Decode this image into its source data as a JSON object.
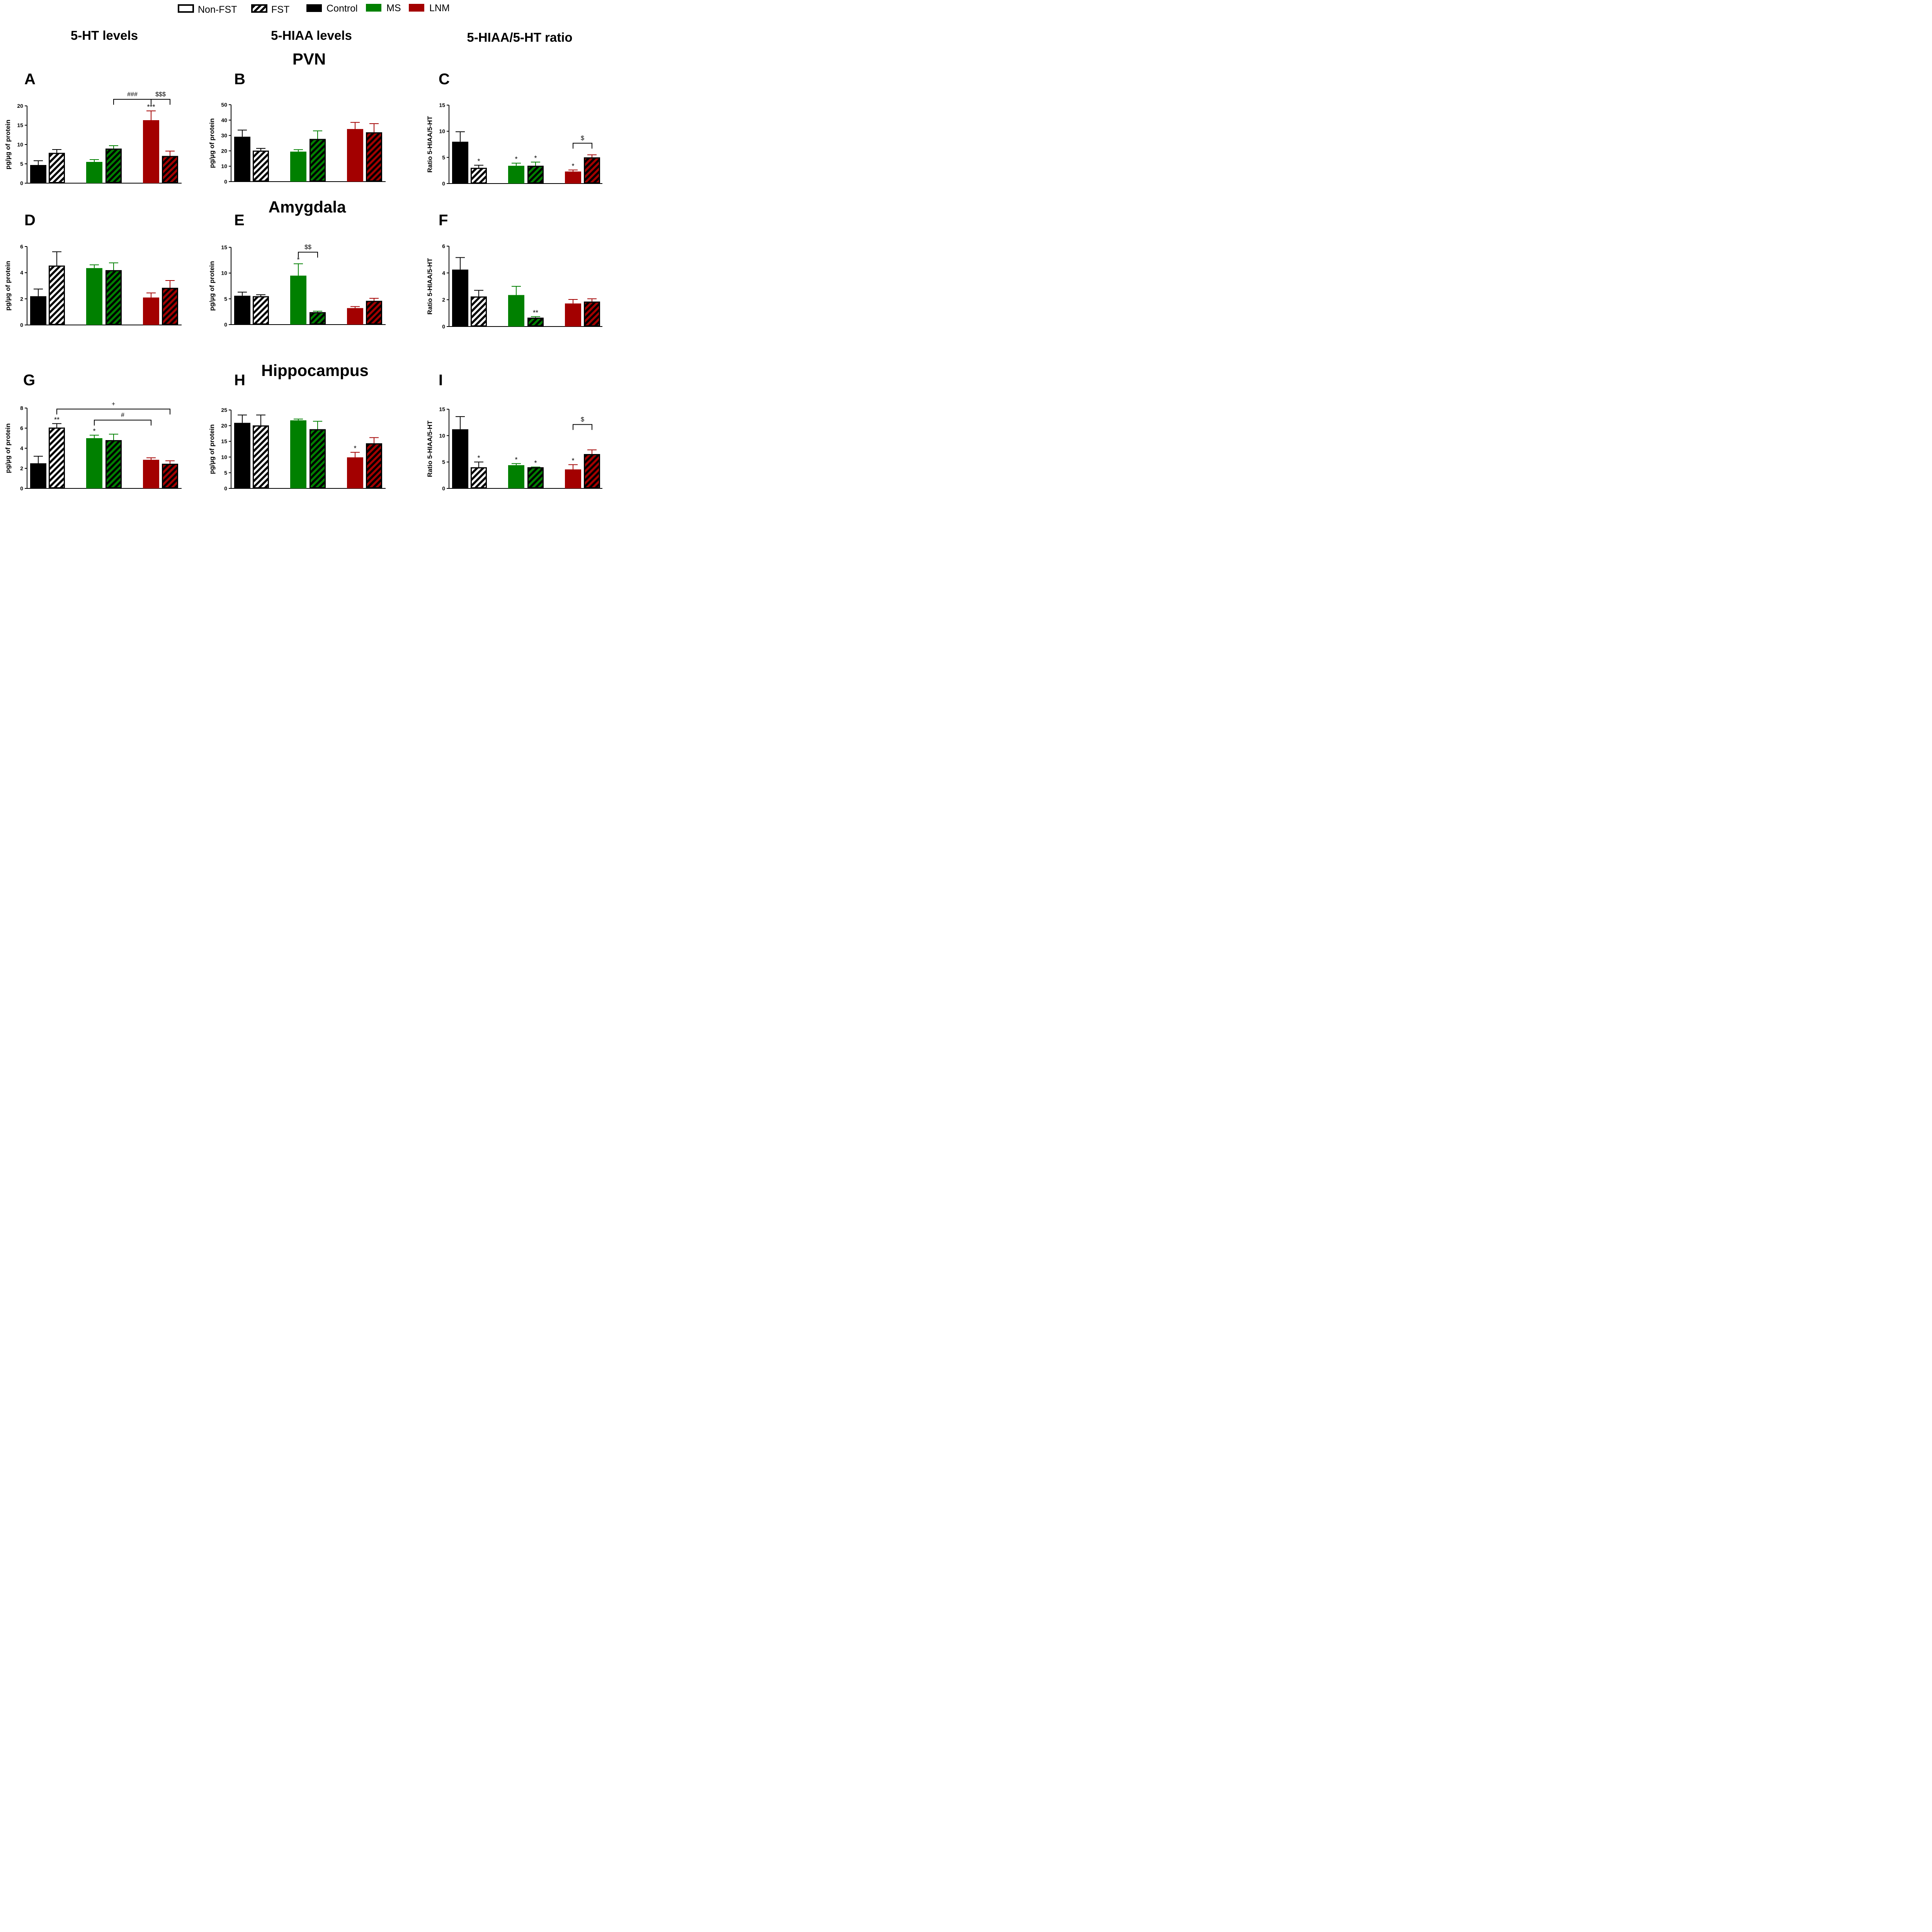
{
  "legend": {
    "items": [
      {
        "label": "Non-FST",
        "fill": "open"
      },
      {
        "label": "FST",
        "fill": "hatched"
      },
      {
        "label": "Control",
        "color": "#000000"
      },
      {
        "label": "MS",
        "color": "#008000"
      },
      {
        "label": "LNM",
        "color": "#a30000"
      }
    ]
  },
  "column_titles": [
    "5-HT levels",
    "5-HIAA levels",
    "5-HIAA/5-HT ratio"
  ],
  "region_titles": [
    "PVN",
    "Amygdala",
    "Hippocampus"
  ],
  "colors": {
    "Control": "#000000",
    "MS": "#008000",
    "LNM": "#a30000"
  },
  "chart_data": [
    {
      "panel": "A",
      "type": "bar",
      "groups": [
        "Control",
        "MS",
        "LNM"
      ],
      "conditions": [
        "Non-FST",
        "FST"
      ],
      "ylabel": "pg/µg of protein",
      "ylim": [
        0,
        20
      ],
      "yticks": [
        "0",
        "5",
        "10",
        "15",
        "20"
      ],
      "values": [
        [
          4.7,
          7.7
        ],
        [
          5.5,
          8.8
        ],
        [
          16.3,
          6.9
        ]
      ],
      "errors": [
        [
          1.1,
          1.0
        ],
        [
          0.6,
          0.9
        ],
        [
          2.4,
          1.4
        ]
      ],
      "stars": [
        [
          "",
          ""
        ],
        [
          "",
          ""
        ],
        [
          "***",
          ""
        ]
      ],
      "brackets": [
        {
          "from": [
            1,
            1
          ],
          "to": [
            2,
            0
          ],
          "label": "###"
        },
        {
          "from": [
            2,
            0
          ],
          "to": [
            2,
            1
          ],
          "label": "$$$"
        }
      ]
    },
    {
      "panel": "B",
      "type": "bar",
      "groups": [
        "Control",
        "MS",
        "LNM"
      ],
      "conditions": [
        "Non-FST",
        "FST"
      ],
      "ylabel": "pg/µg of protein",
      "ylim": [
        0,
        50
      ],
      "yticks": [
        "0",
        "10",
        "20",
        "30",
        "40",
        "50"
      ],
      "values": [
        [
          29.2,
          19.8
        ],
        [
          19.5,
          27.4
        ],
        [
          34.2,
          31.7
        ]
      ],
      "errors": [
        [
          4.3,
          1.8
        ],
        [
          1.3,
          5.6
        ],
        [
          4.3,
          6.0
        ]
      ],
      "stars": [
        [
          "",
          ""
        ],
        [
          "",
          ""
        ],
        [
          "",
          ""
        ]
      ],
      "brackets": []
    },
    {
      "panel": "C",
      "type": "bar",
      "groups": [
        "Control",
        "MS",
        "LNM"
      ],
      "conditions": [
        "Non-FST",
        "FST"
      ],
      "ylabel": "Ratio 5-HIAA/5-HT",
      "ylim": [
        0,
        15
      ],
      "yticks": [
        "0",
        "5",
        "10",
        "15"
      ],
      "values": [
        [
          8.0,
          2.9
        ],
        [
          3.4,
          3.3
        ],
        [
          2.3,
          4.9
        ]
      ],
      "errors": [
        [
          1.9,
          0.6
        ],
        [
          0.5,
          0.8
        ],
        [
          0.3,
          0.6
        ]
      ],
      "stars": [
        [
          "",
          "*"
        ],
        [
          "*",
          "*"
        ],
        [
          "*",
          ""
        ]
      ],
      "brackets": [
        {
          "from": [
            2,
            0
          ],
          "to": [
            2,
            1
          ],
          "label": "$"
        }
      ]
    },
    {
      "panel": "D",
      "type": "bar",
      "groups": [
        "Control",
        "MS",
        "LNM"
      ],
      "conditions": [
        "Non-FST",
        "FST"
      ],
      "ylabel": "pg/µg of protein",
      "ylim": [
        0,
        6
      ],
      "yticks": [
        "0",
        "2",
        "4",
        "6"
      ],
      "values": [
        [
          2.2,
          4.5
        ],
        [
          4.35,
          4.15
        ],
        [
          2.1,
          2.8
        ]
      ],
      "errors": [
        [
          0.55,
          1.1
        ],
        [
          0.25,
          0.6
        ],
        [
          0.35,
          0.6
        ]
      ],
      "stars": [
        [
          "",
          ""
        ],
        [
          "",
          ""
        ],
        [
          "",
          ""
        ]
      ],
      "brackets": []
    },
    {
      "panel": "E",
      "type": "bar",
      "groups": [
        "Control",
        "MS",
        "LNM"
      ],
      "conditions": [
        "Non-FST",
        "FST"
      ],
      "ylabel": "pg/µg of protein",
      "ylim": [
        0,
        15
      ],
      "yticks": [
        "0",
        "5",
        "10",
        "15"
      ],
      "values": [
        [
          5.6,
          5.4
        ],
        [
          9.5,
          2.3
        ],
        [
          3.2,
          4.5
        ]
      ],
      "errors": [
        [
          0.7,
          0.4
        ],
        [
          2.3,
          0.3
        ],
        [
          0.3,
          0.6
        ]
      ],
      "stars": [
        [
          "",
          ""
        ],
        [
          "*",
          ""
        ],
        [
          "",
          ""
        ]
      ],
      "brackets": [
        {
          "from": [
            1,
            0
          ],
          "to": [
            1,
            1
          ],
          "label": "$$"
        }
      ]
    },
    {
      "panel": "F",
      "type": "bar",
      "groups": [
        "Control",
        "MS",
        "LNM"
      ],
      "conditions": [
        "Non-FST",
        "FST"
      ],
      "ylabel": "Ratio 5-HIAA/5-HT",
      "ylim": [
        0,
        6
      ],
      "yticks": [
        "0",
        "2",
        "4",
        "6"
      ],
      "values": [
        [
          4.25,
          2.2
        ],
        [
          2.35,
          0.62
        ],
        [
          1.72,
          1.82
        ]
      ],
      "errors": [
        [
          0.9,
          0.5
        ],
        [
          0.65,
          0.12
        ],
        [
          0.3,
          0.25
        ]
      ],
      "stars": [
        [
          "",
          ""
        ],
        [
          "",
          "**"
        ],
        [
          "",
          ""
        ]
      ],
      "brackets": []
    },
    {
      "panel": "G",
      "type": "bar",
      "groups": [
        "Control",
        "MS",
        "LNM"
      ],
      "conditions": [
        "Non-FST",
        "FST"
      ],
      "ylabel": "pg/µg of protein",
      "ylim": [
        0,
        8
      ],
      "yticks": [
        "0",
        "2",
        "4",
        "6",
        "8"
      ],
      "values": [
        [
          2.5,
          6.0
        ],
        [
          5.0,
          4.75
        ],
        [
          2.85,
          2.4
        ]
      ],
      "errors": [
        [
          0.7,
          0.45
        ],
        [
          0.3,
          0.65
        ],
        [
          0.2,
          0.35
        ]
      ],
      "stars": [
        [
          "",
          "**"
        ],
        [
          "*",
          ""
        ],
        [
          "",
          ""
        ]
      ],
      "brackets": [
        {
          "from": [
            0,
            1
          ],
          "to": [
            2,
            1
          ],
          "label": "+",
          "level": 7.9
        },
        {
          "from": [
            1,
            0
          ],
          "to": [
            2,
            0
          ],
          "label": "#",
          "level": 6.8
        }
      ]
    },
    {
      "panel": "H",
      "type": "bar",
      "groups": [
        "Control",
        "MS",
        "LNM"
      ],
      "conditions": [
        "Non-FST",
        "FST"
      ],
      "ylabel": "pg/µg of protein",
      "ylim": [
        0,
        25
      ],
      "yticks": [
        "0",
        "5",
        "10",
        "15",
        "20",
        "25"
      ],
      "values": [
        [
          20.9,
          19.9
        ],
        [
          21.7,
          18.7
        ],
        [
          9.9,
          14.2
        ]
      ],
      "errors": [
        [
          2.5,
          3.5
        ],
        [
          0.4,
          2.7
        ],
        [
          1.6,
          2.0
        ]
      ],
      "stars": [
        [
          "",
          ""
        ],
        [
          "",
          ""
        ],
        [
          "*",
          ""
        ]
      ],
      "brackets": []
    },
    {
      "panel": "I",
      "type": "bar",
      "groups": [
        "Control",
        "MS",
        "LNM"
      ],
      "conditions": [
        "Non-FST",
        "FST"
      ],
      "ylabel": "Ratio 5-HIAA/5-HT",
      "ylim": [
        0,
        15
      ],
      "yticks": [
        "0",
        "5",
        "10",
        "15"
      ],
      "values": [
        [
          11.2,
          3.9
        ],
        [
          4.4,
          3.9
        ],
        [
          3.6,
          6.4
        ]
      ],
      "errors": [
        [
          2.4,
          1.1
        ],
        [
          0.3,
          0.15
        ],
        [
          0.9,
          0.9
        ]
      ],
      "stars": [
        [
          "",
          "*"
        ],
        [
          "*",
          "*"
        ],
        [
          "*",
          ""
        ]
      ],
      "brackets": [
        {
          "from": [
            2,
            0
          ],
          "to": [
            2,
            1
          ],
          "label": "$",
          "level": 12.1
        }
      ]
    }
  ]
}
